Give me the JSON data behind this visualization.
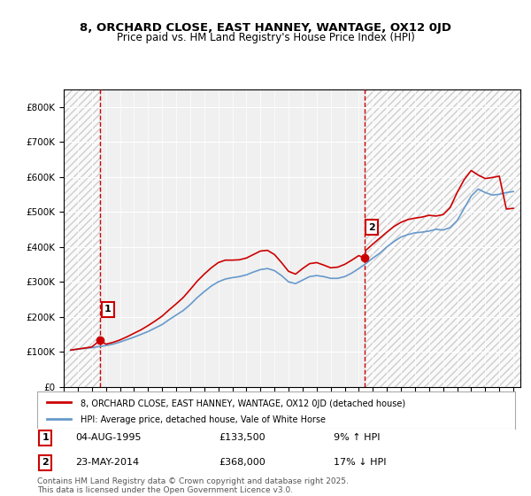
{
  "title": "8, ORCHARD CLOSE, EAST HANNEY, WANTAGE, OX12 0JD",
  "subtitle": "Price paid vs. HM Land Registry's House Price Index (HPI)",
  "ylabel": "",
  "background_color": "#ffffff",
  "plot_bg_color": "#f0f0f0",
  "hatch_color": "#d0d0d0",
  "grid_color": "#ffffff",
  "sale1": {
    "date": 1995.59,
    "price": 133500,
    "label": "1"
  },
  "sale2": {
    "date": 2014.39,
    "price": 368000,
    "label": "2"
  },
  "sale1_info": "04-AUG-1995    £133,500    9% ↑ HPI",
  "sale2_info": "23-MAY-2014    £368,000    17% ↓ HPI",
  "legend1": "8, ORCHARD CLOSE, EAST HANNEY, WANTAGE, OX12 0JD (detached house)",
  "legend2": "HPI: Average price, detached house, Vale of White Horse",
  "footer": "Contains HM Land Registry data © Crown copyright and database right 2025.\nThis data is licensed under the Open Government Licence v3.0.",
  "ylim": [
    0,
    850000
  ],
  "xlim": [
    1993,
    2025.5
  ],
  "yticks": [
    0,
    100000,
    200000,
    300000,
    400000,
    500000,
    600000,
    700000,
    800000
  ],
  "ytick_labels": [
    "£0",
    "£100K",
    "£200K",
    "£300K",
    "£400K",
    "£500K",
    "£600K",
    "£700K",
    "£800K"
  ],
  "red_line_color": "#cc0000",
  "blue_line_color": "#6699cc",
  "dot_color": "#cc0000",
  "hpi_data": {
    "years": [
      1993.5,
      1994.0,
      1994.5,
      1995.0,
      1995.5,
      1996.0,
      1996.5,
      1997.0,
      1997.5,
      1998.0,
      1998.5,
      1999.0,
      1999.5,
      2000.0,
      2000.5,
      2001.0,
      2001.5,
      2002.0,
      2002.5,
      2003.0,
      2003.5,
      2004.0,
      2004.5,
      2005.0,
      2005.5,
      2006.0,
      2006.5,
      2007.0,
      2007.5,
      2008.0,
      2008.5,
      2009.0,
      2009.5,
      2010.0,
      2010.5,
      2011.0,
      2011.5,
      2012.0,
      2012.5,
      2013.0,
      2013.5,
      2014.0,
      2014.5,
      2015.0,
      2015.5,
      2016.0,
      2016.5,
      2017.0,
      2017.5,
      2018.0,
      2018.5,
      2019.0,
      2019.5,
      2020.0,
      2020.5,
      2021.0,
      2021.5,
      2022.0,
      2022.5,
      2023.0,
      2023.5,
      2024.0,
      2024.5,
      2025.0
    ],
    "values": [
      105000,
      108000,
      110000,
      112000,
      115000,
      118000,
      122000,
      128000,
      135000,
      142000,
      150000,
      158000,
      168000,
      178000,
      192000,
      205000,
      218000,
      235000,
      255000,
      272000,
      288000,
      300000,
      308000,
      312000,
      315000,
      320000,
      328000,
      335000,
      338000,
      332000,
      318000,
      300000,
      295000,
      305000,
      315000,
      318000,
      315000,
      310000,
      310000,
      315000,
      325000,
      338000,
      352000,
      368000,
      382000,
      400000,
      415000,
      428000,
      435000,
      440000,
      442000,
      445000,
      450000,
      448000,
      455000,
      475000,
      510000,
      545000,
      565000,
      555000,
      548000,
      550000,
      555000,
      558000
    ]
  },
  "price_data": {
    "years": [
      1993.5,
      1994.0,
      1994.5,
      1995.0,
      1995.59,
      1996.0,
      1996.5,
      1997.0,
      1997.5,
      1998.0,
      1998.5,
      1999.0,
      1999.5,
      2000.0,
      2000.5,
      2001.0,
      2001.5,
      2002.0,
      2002.5,
      2003.0,
      2003.5,
      2004.0,
      2004.5,
      2005.0,
      2005.5,
      2006.0,
      2006.5,
      2007.0,
      2007.5,
      2008.0,
      2008.5,
      2009.0,
      2009.5,
      2010.0,
      2010.5,
      2011.0,
      2011.5,
      2012.0,
      2012.5,
      2013.0,
      2013.5,
      2014.0,
      2014.39,
      2014.5,
      2015.0,
      2015.5,
      2016.0,
      2016.5,
      2017.0,
      2017.5,
      2018.0,
      2018.5,
      2019.0,
      2019.5,
      2020.0,
      2020.5,
      2021.0,
      2021.5,
      2022.0,
      2022.5,
      2023.0,
      2023.5,
      2024.0,
      2024.5,
      2025.0
    ],
    "values": [
      105000,
      108000,
      111000,
      114000,
      133500,
      122000,
      127000,
      134000,
      143000,
      153000,
      163000,
      175000,
      188000,
      202000,
      220000,
      237000,
      255000,
      278000,
      302000,
      322000,
      340000,
      355000,
      362000,
      362000,
      363000,
      368000,
      378000,
      388000,
      390000,
      378000,
      355000,
      330000,
      322000,
      338000,
      352000,
      355000,
      348000,
      340000,
      342000,
      350000,
      362000,
      375000,
      368000,
      390000,
      408000,
      425000,
      442000,
      458000,
      470000,
      478000,
      482000,
      485000,
      490000,
      488000,
      492000,
      512000,
      555000,
      592000,
      618000,
      605000,
      595000,
      598000,
      602000,
      508000,
      510000
    ]
  }
}
